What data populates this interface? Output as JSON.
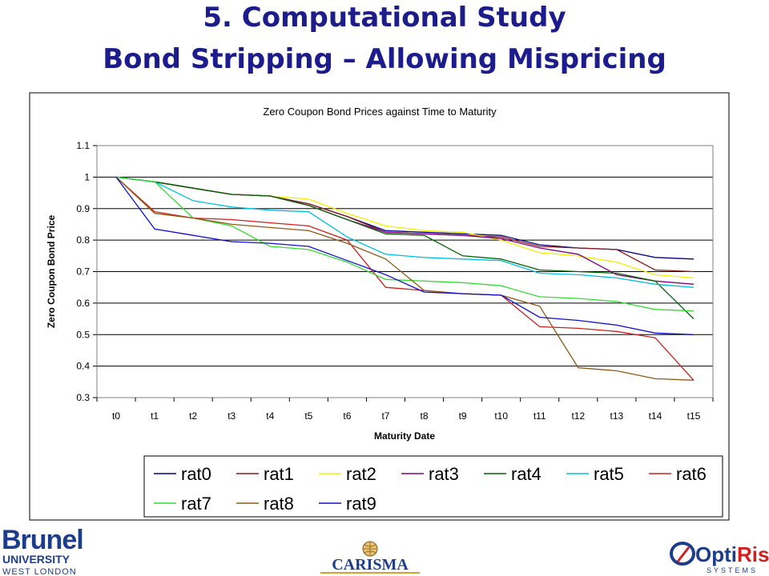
{
  "slide": {
    "title_line1": "5. Computational Study",
    "title_line2": "Bond Stripping – Allowing Mispricing"
  },
  "chart_data": {
    "type": "line",
    "title": "Zero Coupon Bond Prices against Time to Maturity",
    "xlabel": "Maturity Date",
    "ylabel": "Zero Coupon Bond Price",
    "categories": [
      "t0",
      "t1",
      "t2",
      "t3",
      "t4",
      "t5",
      "t6",
      "t7",
      "t8",
      "t9",
      "t10",
      "t11",
      "t12",
      "t13",
      "t14",
      "t15"
    ],
    "ylim": [
      0.3,
      1.1
    ],
    "yticks": [
      0.3,
      0.4,
      0.5,
      0.6,
      0.7,
      0.8,
      0.9,
      1,
      1.1
    ],
    "ytick_labels": [
      "0.3",
      "0.4",
      "0.5",
      "0.6",
      "0.7",
      "0.8",
      "0.9",
      "1",
      "1.1"
    ],
    "grid": "horizontal",
    "legend": "bottom",
    "series": [
      {
        "name": "rat0",
        "color": "#000080",
        "values": [
          1.0,
          0.985,
          0.965,
          0.945,
          0.94,
          0.915,
          0.875,
          0.83,
          0.825,
          0.82,
          0.815,
          0.785,
          0.775,
          0.77,
          0.745,
          0.74
        ]
      },
      {
        "name": "rat1",
        "color": "#8b1a1a",
        "values": [
          1.0,
          0.985,
          0.965,
          0.945,
          0.94,
          0.915,
          0.875,
          0.825,
          0.82,
          0.815,
          0.81,
          0.78,
          0.775,
          0.77,
          0.705,
          0.7
        ]
      },
      {
        "name": "rat2",
        "color": "#f0f000",
        "values": [
          1.0,
          0.985,
          0.965,
          0.945,
          0.94,
          0.93,
          0.885,
          0.845,
          0.83,
          0.825,
          0.8,
          0.76,
          0.75,
          0.73,
          0.69,
          0.68
        ]
      },
      {
        "name": "rat3",
        "color": "#800080",
        "values": [
          1.0,
          0.985,
          0.965,
          0.945,
          0.94,
          0.91,
          0.865,
          0.825,
          0.82,
          0.815,
          0.805,
          0.775,
          0.755,
          0.69,
          0.67,
          0.66
        ]
      },
      {
        "name": "rat4",
        "color": "#006400",
        "values": [
          1.0,
          0.985,
          0.965,
          0.945,
          0.94,
          0.91,
          0.865,
          0.82,
          0.815,
          0.75,
          0.74,
          0.705,
          0.7,
          0.695,
          0.67,
          0.55
        ]
      },
      {
        "name": "rat5",
        "color": "#00c0e0",
        "values": [
          1.0,
          0.985,
          0.925,
          0.905,
          0.895,
          0.89,
          0.81,
          0.755,
          0.745,
          0.74,
          0.735,
          0.695,
          0.69,
          0.68,
          0.66,
          0.65
        ]
      },
      {
        "name": "rat6",
        "color": "#cc2020",
        "values": [
          1.0,
          0.89,
          0.87,
          0.865,
          0.855,
          0.845,
          0.8,
          0.65,
          0.64,
          0.63,
          0.625,
          0.525,
          0.52,
          0.51,
          0.49,
          0.355
        ]
      },
      {
        "name": "rat7",
        "color": "#33dd33",
        "values": [
          1.0,
          0.985,
          0.87,
          0.845,
          0.78,
          0.77,
          0.73,
          0.675,
          0.67,
          0.665,
          0.655,
          0.62,
          0.615,
          0.605,
          0.58,
          0.575
        ]
      },
      {
        "name": "rat8",
        "color": "#8b5a14",
        "values": [
          1.0,
          0.885,
          0.87,
          0.85,
          0.84,
          0.83,
          0.79,
          0.74,
          0.64,
          0.63,
          0.625,
          0.59,
          0.395,
          0.385,
          0.36,
          0.355
        ]
      },
      {
        "name": "rat9",
        "color": "#1010cc",
        "values": [
          1.0,
          0.835,
          0.815,
          0.795,
          0.79,
          0.78,
          0.735,
          0.69,
          0.635,
          0.63,
          0.625,
          0.555,
          0.545,
          0.53,
          0.505,
          0.5
        ]
      }
    ]
  },
  "footer": {
    "brunel_word": "Brunel",
    "brunel_sub1": "UNIVERSITY",
    "brunel_sub2": "WEST LONDON",
    "carisma": "CARISMA",
    "optirisk_1": "Opti",
    "optirisk_2": "Risk",
    "optirisk_sub": "SYSTEMS"
  }
}
